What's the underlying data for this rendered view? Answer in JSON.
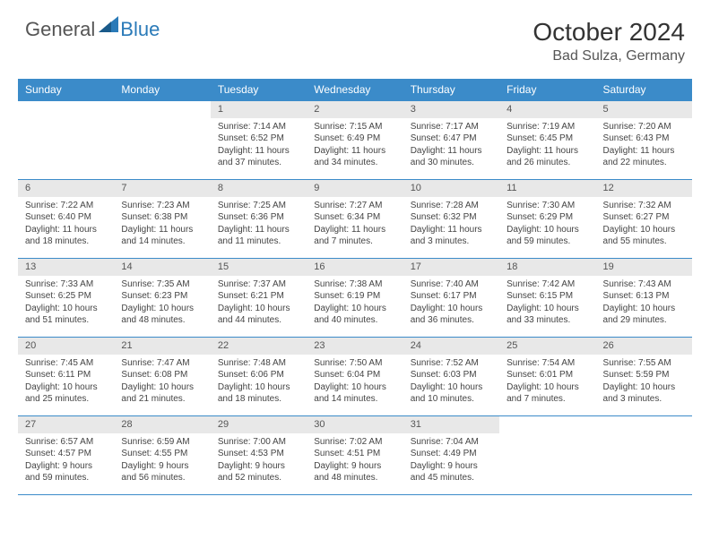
{
  "brand": {
    "general": "General",
    "blue": "Blue"
  },
  "title": {
    "month": "October 2024",
    "location": "Bad Sulza, Germany"
  },
  "headers": [
    "Sunday",
    "Monday",
    "Tuesday",
    "Wednesday",
    "Thursday",
    "Friday",
    "Saturday"
  ],
  "colors": {
    "header_bg": "#3b8bc9",
    "daynum_bg": "#e8e8e8",
    "border": "#3b8bc9",
    "logo_blue": "#2a7ab8"
  },
  "layout": {
    "first_weekday": 2,
    "days_in_month": 31,
    "rows": 5,
    "cols": 7
  },
  "days": {
    "1": {
      "sunrise": "Sunrise: 7:14 AM",
      "sunset": "Sunset: 6:52 PM",
      "daylight": "Daylight: 11 hours and 37 minutes."
    },
    "2": {
      "sunrise": "Sunrise: 7:15 AM",
      "sunset": "Sunset: 6:49 PM",
      "daylight": "Daylight: 11 hours and 34 minutes."
    },
    "3": {
      "sunrise": "Sunrise: 7:17 AM",
      "sunset": "Sunset: 6:47 PM",
      "daylight": "Daylight: 11 hours and 30 minutes."
    },
    "4": {
      "sunrise": "Sunrise: 7:19 AM",
      "sunset": "Sunset: 6:45 PM",
      "daylight": "Daylight: 11 hours and 26 minutes."
    },
    "5": {
      "sunrise": "Sunrise: 7:20 AM",
      "sunset": "Sunset: 6:43 PM",
      "daylight": "Daylight: 11 hours and 22 minutes."
    },
    "6": {
      "sunrise": "Sunrise: 7:22 AM",
      "sunset": "Sunset: 6:40 PM",
      "daylight": "Daylight: 11 hours and 18 minutes."
    },
    "7": {
      "sunrise": "Sunrise: 7:23 AM",
      "sunset": "Sunset: 6:38 PM",
      "daylight": "Daylight: 11 hours and 14 minutes."
    },
    "8": {
      "sunrise": "Sunrise: 7:25 AM",
      "sunset": "Sunset: 6:36 PM",
      "daylight": "Daylight: 11 hours and 11 minutes."
    },
    "9": {
      "sunrise": "Sunrise: 7:27 AM",
      "sunset": "Sunset: 6:34 PM",
      "daylight": "Daylight: 11 hours and 7 minutes."
    },
    "10": {
      "sunrise": "Sunrise: 7:28 AM",
      "sunset": "Sunset: 6:32 PM",
      "daylight": "Daylight: 11 hours and 3 minutes."
    },
    "11": {
      "sunrise": "Sunrise: 7:30 AM",
      "sunset": "Sunset: 6:29 PM",
      "daylight": "Daylight: 10 hours and 59 minutes."
    },
    "12": {
      "sunrise": "Sunrise: 7:32 AM",
      "sunset": "Sunset: 6:27 PM",
      "daylight": "Daylight: 10 hours and 55 minutes."
    },
    "13": {
      "sunrise": "Sunrise: 7:33 AM",
      "sunset": "Sunset: 6:25 PM",
      "daylight": "Daylight: 10 hours and 51 minutes."
    },
    "14": {
      "sunrise": "Sunrise: 7:35 AM",
      "sunset": "Sunset: 6:23 PM",
      "daylight": "Daylight: 10 hours and 48 minutes."
    },
    "15": {
      "sunrise": "Sunrise: 7:37 AM",
      "sunset": "Sunset: 6:21 PM",
      "daylight": "Daylight: 10 hours and 44 minutes."
    },
    "16": {
      "sunrise": "Sunrise: 7:38 AM",
      "sunset": "Sunset: 6:19 PM",
      "daylight": "Daylight: 10 hours and 40 minutes."
    },
    "17": {
      "sunrise": "Sunrise: 7:40 AM",
      "sunset": "Sunset: 6:17 PM",
      "daylight": "Daylight: 10 hours and 36 minutes."
    },
    "18": {
      "sunrise": "Sunrise: 7:42 AM",
      "sunset": "Sunset: 6:15 PM",
      "daylight": "Daylight: 10 hours and 33 minutes."
    },
    "19": {
      "sunrise": "Sunrise: 7:43 AM",
      "sunset": "Sunset: 6:13 PM",
      "daylight": "Daylight: 10 hours and 29 minutes."
    },
    "20": {
      "sunrise": "Sunrise: 7:45 AM",
      "sunset": "Sunset: 6:11 PM",
      "daylight": "Daylight: 10 hours and 25 minutes."
    },
    "21": {
      "sunrise": "Sunrise: 7:47 AM",
      "sunset": "Sunset: 6:08 PM",
      "daylight": "Daylight: 10 hours and 21 minutes."
    },
    "22": {
      "sunrise": "Sunrise: 7:48 AM",
      "sunset": "Sunset: 6:06 PM",
      "daylight": "Daylight: 10 hours and 18 minutes."
    },
    "23": {
      "sunrise": "Sunrise: 7:50 AM",
      "sunset": "Sunset: 6:04 PM",
      "daylight": "Daylight: 10 hours and 14 minutes."
    },
    "24": {
      "sunrise": "Sunrise: 7:52 AM",
      "sunset": "Sunset: 6:03 PM",
      "daylight": "Daylight: 10 hours and 10 minutes."
    },
    "25": {
      "sunrise": "Sunrise: 7:54 AM",
      "sunset": "Sunset: 6:01 PM",
      "daylight": "Daylight: 10 hours and 7 minutes."
    },
    "26": {
      "sunrise": "Sunrise: 7:55 AM",
      "sunset": "Sunset: 5:59 PM",
      "daylight": "Daylight: 10 hours and 3 minutes."
    },
    "27": {
      "sunrise": "Sunrise: 6:57 AM",
      "sunset": "Sunset: 4:57 PM",
      "daylight": "Daylight: 9 hours and 59 minutes."
    },
    "28": {
      "sunrise": "Sunrise: 6:59 AM",
      "sunset": "Sunset: 4:55 PM",
      "daylight": "Daylight: 9 hours and 56 minutes."
    },
    "29": {
      "sunrise": "Sunrise: 7:00 AM",
      "sunset": "Sunset: 4:53 PM",
      "daylight": "Daylight: 9 hours and 52 minutes."
    },
    "30": {
      "sunrise": "Sunrise: 7:02 AM",
      "sunset": "Sunset: 4:51 PM",
      "daylight": "Daylight: 9 hours and 48 minutes."
    },
    "31": {
      "sunrise": "Sunrise: 7:04 AM",
      "sunset": "Sunset: 4:49 PM",
      "daylight": "Daylight: 9 hours and 45 minutes."
    }
  }
}
